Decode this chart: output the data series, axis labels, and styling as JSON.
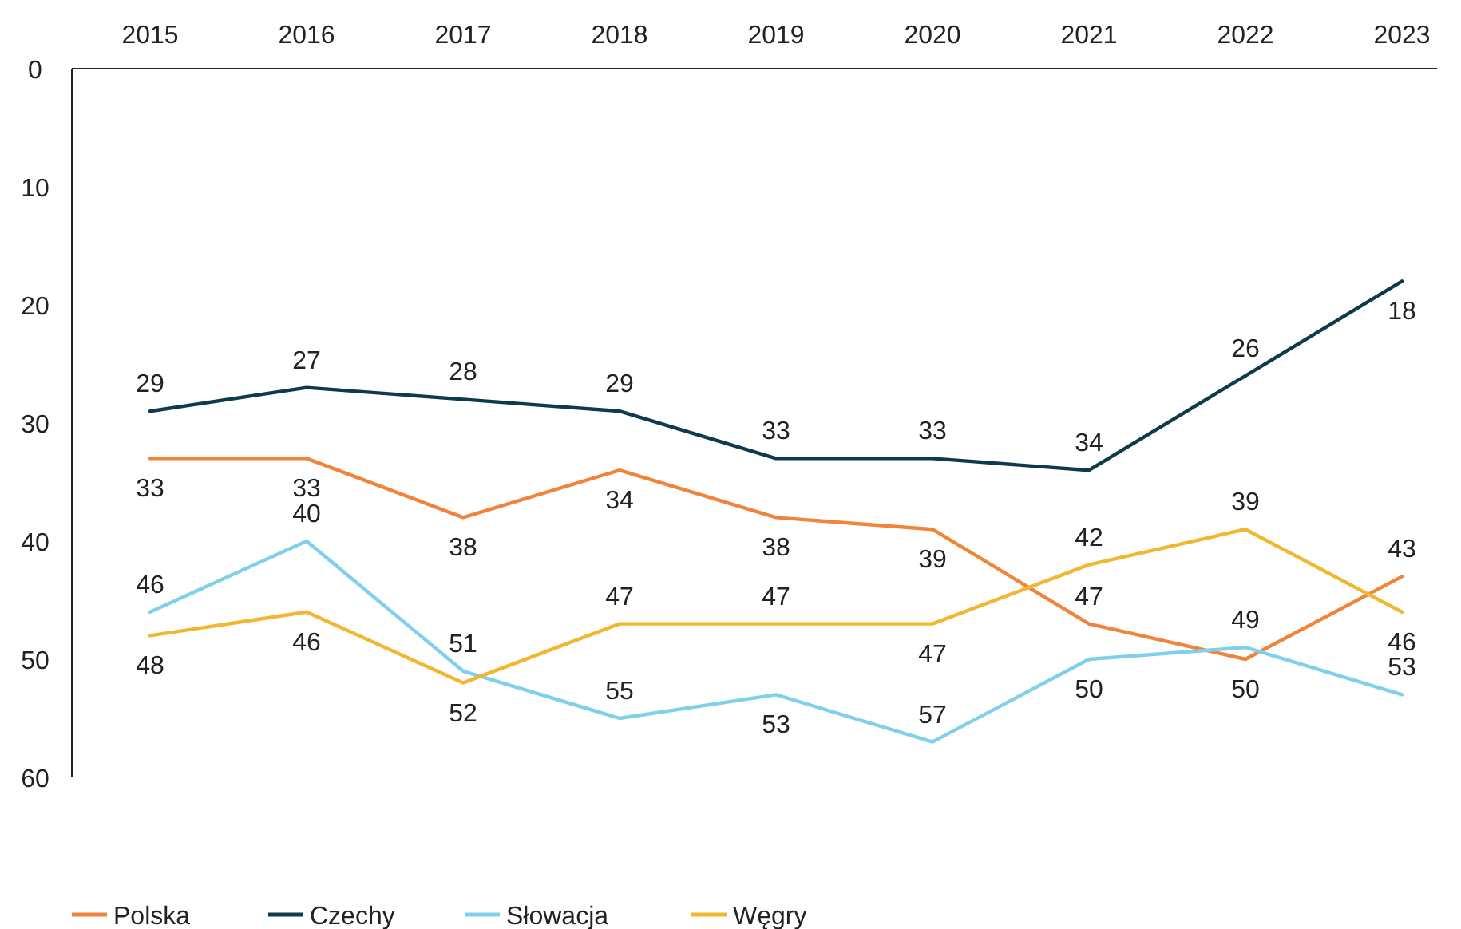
{
  "chart_data": {
    "type": "line",
    "categories": [
      "2015",
      "2016",
      "2017",
      "2018",
      "2019",
      "2020",
      "2021",
      "2022",
      "2023"
    ],
    "series": [
      {
        "name": "Polska",
        "color": "#f0843a",
        "values": [
          33,
          33,
          38,
          34,
          38,
          39,
          47,
          50,
          43
        ]
      },
      {
        "name": "Czechy",
        "color": "#0e3a4c",
        "values": [
          29,
          27,
          28,
          29,
          33,
          33,
          34,
          26,
          18
        ]
      },
      {
        "name": "Słowacja",
        "color": "#80d0ec",
        "values": [
          46,
          40,
          51,
          55,
          53,
          57,
          50,
          49,
          53
        ]
      },
      {
        "name": "Węgry",
        "color": "#f2b731",
        "values": [
          48,
          46,
          52,
          47,
          47,
          47,
          42,
          39,
          46
        ]
      }
    ],
    "ylim": [
      60,
      0
    ],
    "yticks": [
      0,
      10,
      20,
      30,
      40,
      50,
      60
    ],
    "data_labels": true,
    "legend": "bottom",
    "grid": false,
    "marker": "none",
    "line_style": "solid"
  }
}
